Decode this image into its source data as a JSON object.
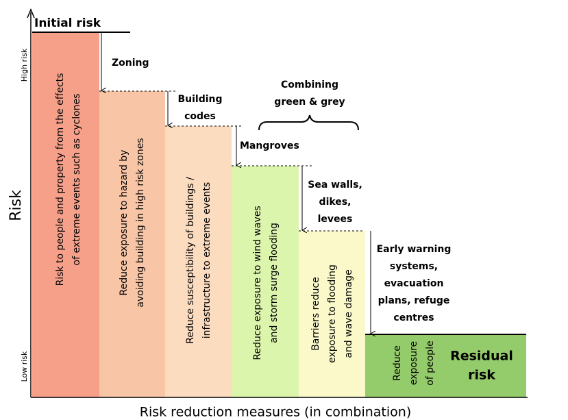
{
  "initial_risk": "Initial risk",
  "y_axis": {
    "label": "Risk",
    "high": "High risk",
    "low": "Low risk"
  },
  "x_axis_label": "Risk reduction measures (in combination)",
  "columns": [
    {
      "lines": [
        "Risk to people and property  from the effects",
        "of extreme events such as cyclones"
      ]
    },
    {
      "lines": [
        "Reduce exposure to hazard by",
        "avoiding building in high risk zones"
      ]
    },
    {
      "lines": [
        "Reduce susceptibility of buildings /",
        "infrastructure to extreme events"
      ]
    },
    {
      "lines": [
        "Reduce exposure to wind waves",
        "and storm surge flooding"
      ]
    },
    {
      "lines": [
        "Barriers reduce",
        "exposure to flooding",
        "and wave damage"
      ]
    },
    {
      "lines": [
        "Reduce",
        "exposure",
        "of people"
      ]
    }
  ],
  "measures": [
    {
      "lines": [
        "Zoning"
      ]
    },
    {
      "lines": [
        "Building",
        "codes"
      ]
    },
    {
      "lines": [
        "Mangroves"
      ]
    },
    {
      "lines": [
        "Sea walls,",
        "dikes,",
        "levees"
      ]
    },
    {
      "lines": [
        "Early warning",
        "systems,",
        "evacuation",
        "plans, refuge",
        "centres"
      ]
    }
  ],
  "group_label": {
    "lines": [
      "Combining",
      "green & grey"
    ]
  },
  "residual_label": {
    "lines": [
      "Residual",
      "risk"
    ]
  }
}
